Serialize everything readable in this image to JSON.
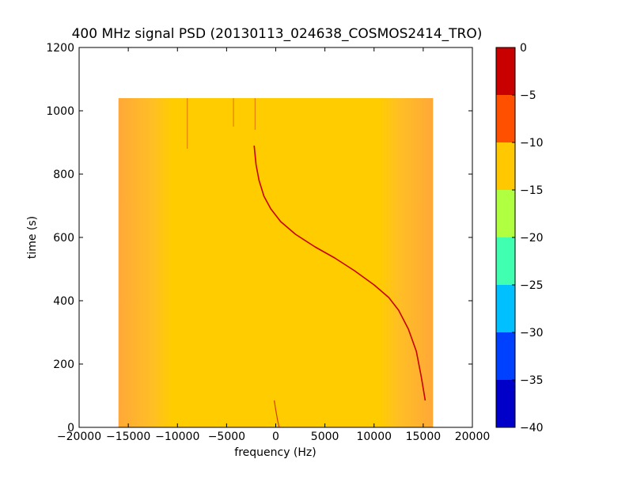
{
  "chart_data": {
    "type": "heatmap",
    "title": "400 MHz signal PSD (20130113_024638_COSMOS2414_TRO)",
    "xlabel": "frequency (Hz)",
    "ylabel": "time (s)",
    "xlim": [
      -20000,
      20000
    ],
    "ylim": [
      0,
      1200
    ],
    "xticks": [
      -20000,
      -15000,
      -10000,
      -5000,
      0,
      5000,
      10000,
      15000,
      20000
    ],
    "xtick_labels": [
      "−20000",
      "−15000",
      "−10000",
      "−5000",
      "0",
      "5000",
      "10000",
      "15000",
      "20000"
    ],
    "yticks": [
      0,
      200,
      400,
      600,
      800,
      1000,
      1200
    ],
    "ytick_labels": [
      "0",
      "200",
      "400",
      "600",
      "800",
      "1000",
      "1200"
    ],
    "grid": false,
    "data_extent": {
      "x": [
        -16000,
        16000
      ],
      "y": [
        0,
        1040
      ]
    },
    "colorbar": {
      "levels": [
        -40,
        -35,
        -30,
        -25,
        -20,
        -15,
        -10,
        -5,
        0
      ],
      "tick_labels": [
        "−40",
        "−35",
        "−30",
        "−25",
        "−20",
        "−15",
        "−10",
        "−5",
        "0"
      ],
      "colors": [
        "#0000c8",
        "#0040ff",
        "#00c0ff",
        "#40ffb0",
        "#b0ff40",
        "#ffc800",
        "#ff5000",
        "#c80000"
      ]
    },
    "background_color": "#ffcc00",
    "edge_color": "#ffa030",
    "signal_color": "#c80000",
    "signal_trace": {
      "name": "",
      "x": [
        -2200,
        -2000,
        -1700,
        -1200,
        -500,
        500,
        2000,
        4000,
        6000,
        8000,
        10000,
        11500,
        12500,
        13500,
        14300,
        14800,
        15200
      ],
      "y": [
        890,
        830,
        780,
        730,
        690,
        650,
        610,
        570,
        535,
        495,
        450,
        410,
        370,
        310,
        240,
        160,
        85
      ]
    },
    "secondary_trace": {
      "x": [
        -150,
        0,
        200,
        350
      ],
      "y": [
        85,
        55,
        20,
        0
      ]
    },
    "vertical_artifacts": [
      {
        "x": -9000,
        "y": [
          880,
          1040
        ]
      },
      {
        "x": -4300,
        "y": [
          950,
          1040
        ]
      },
      {
        "x": -2100,
        "y": [
          940,
          1040
        ]
      }
    ]
  }
}
